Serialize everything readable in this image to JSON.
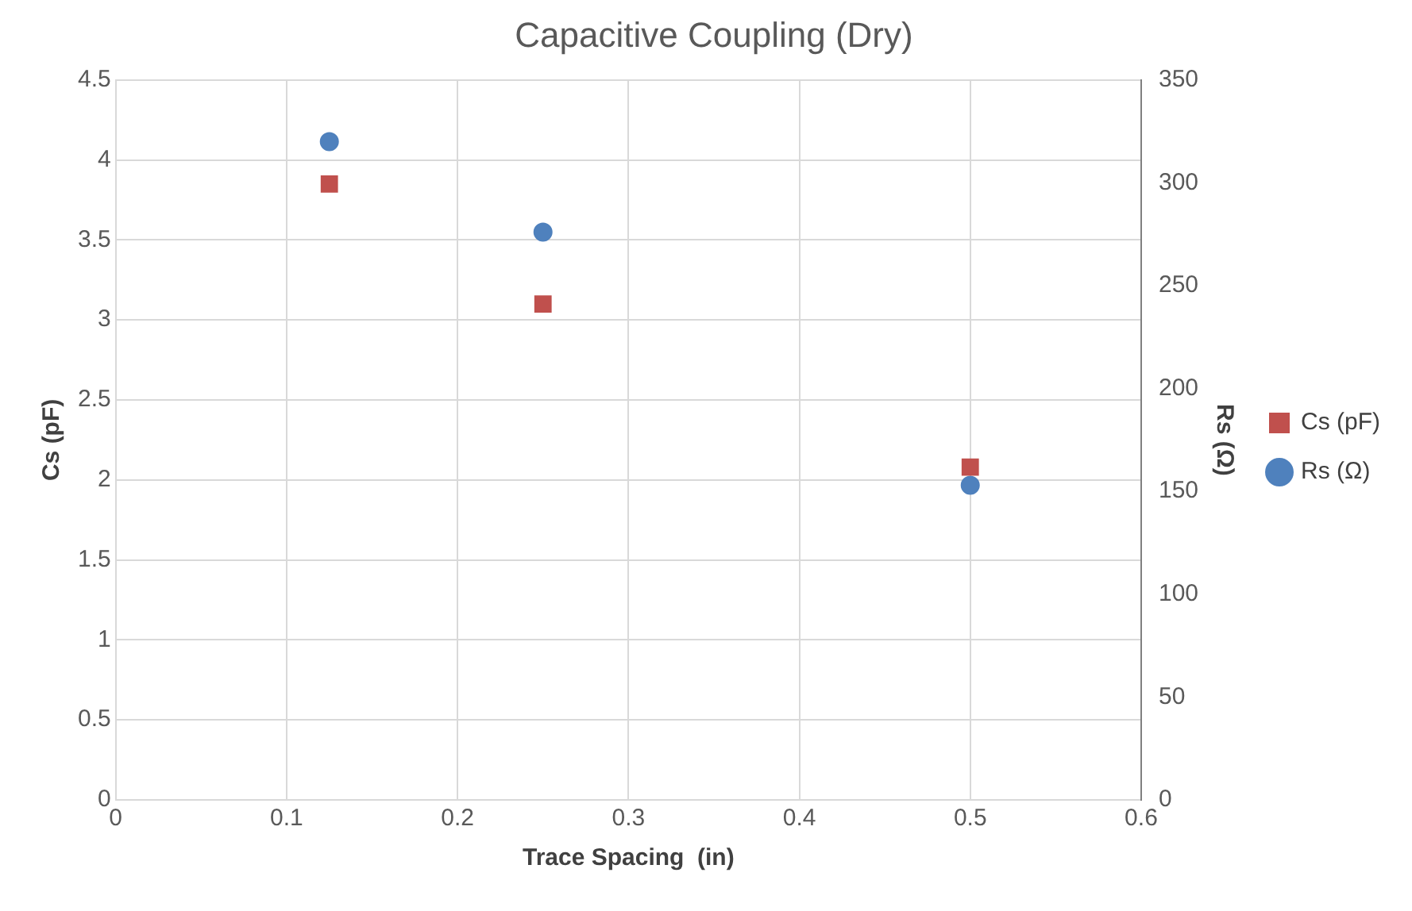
{
  "chart_data": {
    "type": "scatter",
    "title": "Capacitive Coupling (Dry)",
    "xlabel": "Trace Spacing  (in)",
    "ylabel": "Cs (pF)",
    "y2label": "Rs (Ω)",
    "x": [
      0.125,
      0.25,
      0.5
    ],
    "series": [
      {
        "name": "Cs (pF)",
        "color": "#c0504d",
        "marker": "square",
        "values": [
          3.85,
          3.1,
          2.08
        ]
      },
      {
        "name": "Rs (Ω)",
        "color": "#4f81bd",
        "marker": "circle",
        "axis": "y2",
        "values": [
          320,
          276,
          153
        ]
      }
    ],
    "xlim": [
      0,
      0.6
    ],
    "xticks": [
      0,
      0.1,
      0.2,
      0.3,
      0.4,
      0.5,
      0.6
    ],
    "ylim": [
      0,
      4.5
    ],
    "yticks": [
      0,
      0.5,
      1,
      1.5,
      2,
      2.5,
      3,
      3.5,
      4,
      4.5
    ],
    "y2lim": [
      0,
      350
    ],
    "y2ticks": [
      0,
      50,
      100,
      150,
      200,
      250,
      300,
      350
    ],
    "grid": true,
    "legend": "right"
  }
}
